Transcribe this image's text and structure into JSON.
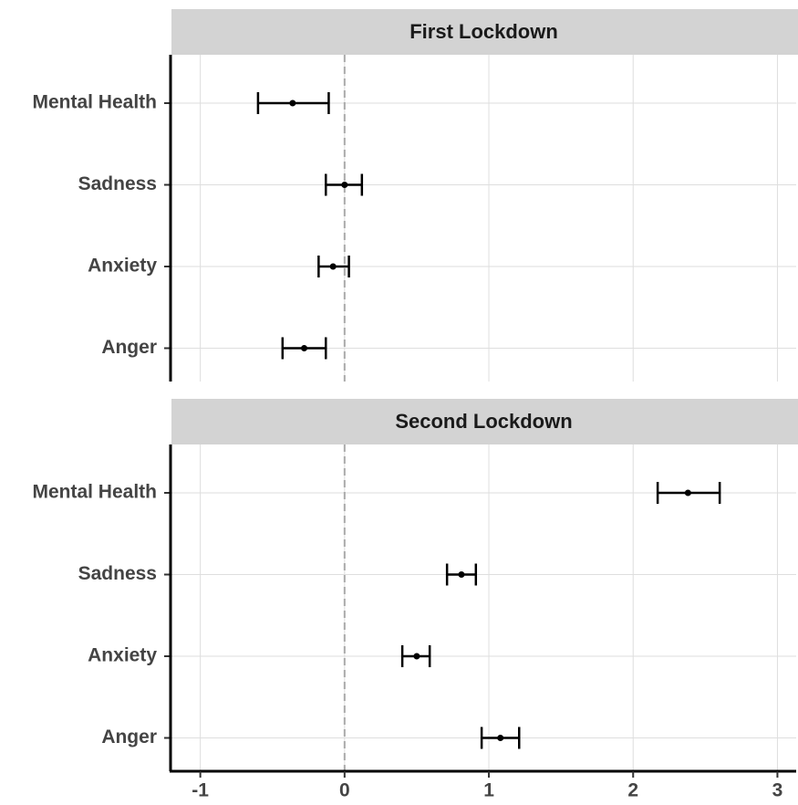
{
  "chart_data": [
    {
      "type": "errorbar",
      "title": "First Lockdown",
      "categories": [
        "Mental Health",
        "Sadness",
        "Anxiety",
        "Anger"
      ],
      "values": [
        -0.36,
        0.0,
        -0.08,
        -0.28
      ],
      "lower": [
        -0.6,
        -0.13,
        -0.18,
        -0.43
      ],
      "upper": [
        -0.11,
        0.12,
        0.03,
        -0.13
      ],
      "xlim": [
        -1.2,
        3.13
      ],
      "xticks": [
        -1,
        0,
        1,
        2,
        3
      ],
      "refline": 0,
      "grid": true,
      "color": "#000000"
    },
    {
      "type": "errorbar",
      "title": "Second Lockdown",
      "categories": [
        "Mental Health",
        "Sadness",
        "Anxiety",
        "Anger"
      ],
      "values": [
        2.38,
        0.81,
        0.5,
        1.08
      ],
      "lower": [
        2.17,
        0.71,
        0.4,
        0.95
      ],
      "upper": [
        2.6,
        0.91,
        0.59,
        1.21
      ],
      "xlim": [
        -1.2,
        3.13
      ],
      "xticks": [
        -1,
        0,
        1,
        2,
        3
      ],
      "refline": 0,
      "grid": true,
      "color": "#000000"
    }
  ]
}
